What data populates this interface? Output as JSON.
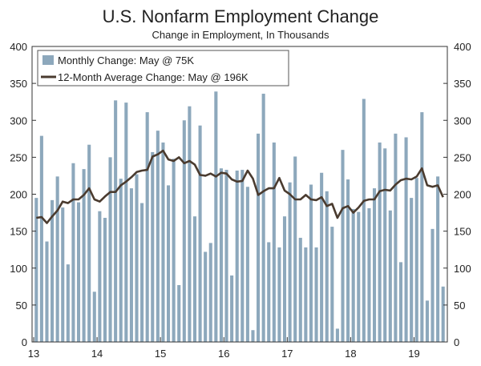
{
  "chart_data": {
    "type": "bar+line",
    "title": "U.S. Nonfarm Employment Change",
    "subtitle": "Change in Employment, In Thousands",
    "ylim": [
      0,
      400
    ],
    "yticks": [
      0,
      50,
      100,
      150,
      200,
      250,
      300,
      350,
      400
    ],
    "xticks": [
      "13",
      "14",
      "15",
      "16",
      "17",
      "18",
      "19"
    ],
    "start": "2013-01",
    "end": "2019-05",
    "legend": {
      "bar_label": "Monthly Change: May @ 75K",
      "line_label": "12-Month Average Change: May @ 196K"
    },
    "series": [
      {
        "name": "Monthly Change",
        "type": "bar",
        "color": "#8da8bc",
        "values": [
          195,
          279,
          136,
          192,
          224,
          182,
          105,
          242,
          189,
          234,
          267,
          68,
          177,
          168,
          250,
          327,
          221,
          324,
          208,
          227,
          188,
          311,
          257,
          286,
          270,
          212,
          248,
          77,
          300,
          319,
          170,
          293,
          122,
          134,
          339,
          235,
          233,
          90,
          232,
          233,
          210,
          16,
          282,
          336,
          135,
          270,
          128,
          170,
          216,
          251,
          141,
          128,
          213,
          128,
          229,
          204,
          156,
          18,
          260,
          220,
          180,
          176,
          329,
          181,
          208,
          270,
          262,
          178,
          282,
          108,
          277,
          195,
          222,
          311,
          56,
          153,
          224,
          75
        ],
        "order": 0
      },
      {
        "name": "12-Month Average Change",
        "type": "line",
        "color": "#4a3b2f",
        "values": [
          168,
          169,
          161,
          170,
          178,
          190,
          188,
          193,
          193,
          199,
          208,
          193,
          190,
          197,
          203,
          203,
          212,
          217,
          223,
          230,
          232,
          233,
          251,
          254,
          259,
          247,
          245,
          250,
          242,
          245,
          240,
          226,
          225,
          228,
          224,
          229,
          228,
          220,
          217,
          218,
          232,
          221,
          199,
          204,
          208,
          208,
          222,
          205,
          200,
          193,
          193,
          199,
          193,
          192,
          196,
          184,
          187,
          168,
          181,
          184,
          175,
          182,
          191,
          193,
          193,
          204,
          206,
          205,
          213,
          219,
          221,
          220,
          224,
          235,
          212,
          210,
          212,
          196
        ],
        "order": 1
      }
    ]
  }
}
